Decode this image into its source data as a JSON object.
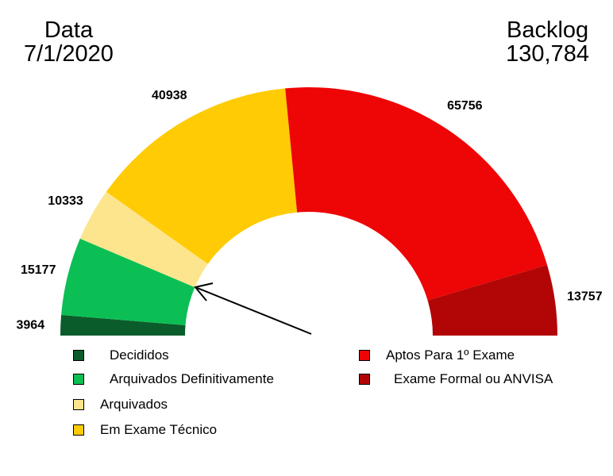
{
  "header": {
    "left_label": "Data",
    "left_value": "7/1/2020",
    "right_label": "Backlog",
    "right_value": "130,784"
  },
  "chart_data": {
    "type": "pie",
    "variant": "semi-donut",
    "title": "",
    "slices": [
      {
        "label": "Decididos",
        "value": 3964,
        "color": "#0a5c2a"
      },
      {
        "label": "Arquivados Definitivamente",
        "value": 15177,
        "color": "#0bbf55"
      },
      {
        "label": "Arquivados",
        "value": 10333,
        "color": "#fde58e"
      },
      {
        "label": "Em Exame Técnico",
        "value": 40938,
        "color": "#ffcb05"
      },
      {
        "label": "Aptos Para 1º Exame",
        "value": 65756,
        "color": "#ee0505"
      },
      {
        "label": "Exame Formal ou ANVISA",
        "value": 13757,
        "color": "#b20606"
      }
    ],
    "data_labels": [
      "3964",
      "15177",
      "10333",
      "40938",
      "65756",
      "13757"
    ],
    "arrow_points_to": "Arquivados",
    "legend_position": "bottom"
  }
}
